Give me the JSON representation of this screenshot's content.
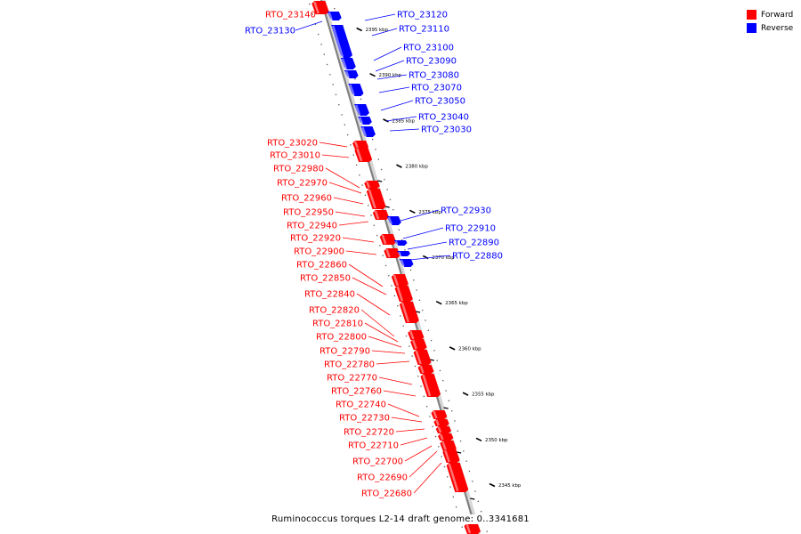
{
  "legend": {
    "forward_label": "Forward",
    "reverse_label": "Reverse",
    "forward_color": "#ff0000",
    "reverse_color": "#0000ff"
  },
  "caption": "Ruminococcus torques L2-14 draft genome: 0..3341681",
  "backbone_color": "#808080",
  "scale": {
    "unit": "kbp",
    "ticks": [
      {
        "value": 2395,
        "label": "2395 kbp"
      },
      {
        "value": 2390,
        "label": "2390 kbp"
      },
      {
        "value": 2385,
        "label": "2385 kbp"
      },
      {
        "value": 2380,
        "label": "2380 kbp"
      },
      {
        "value": 2375,
        "label": "2375 kbp"
      },
      {
        "value": 2370,
        "label": "2370 kbp"
      },
      {
        "value": 2365,
        "label": "2365 kbp"
      },
      {
        "value": 2360,
        "label": "2360 kbp"
      },
      {
        "value": 2355,
        "label": "2355 kbp"
      },
      {
        "value": 2350,
        "label": "2350 kbp"
      },
      {
        "value": 2345,
        "label": "2345 kbp"
      }
    ]
  },
  "genes": {
    "forward": [
      "RTO_23140",
      "RTO_23020",
      "RTO_23010",
      "RTO_22980",
      "RTO_22970",
      "RTO_22960",
      "RTO_22950",
      "RTO_22940",
      "RTO_22920",
      "RTO_22900",
      "RTO_22860",
      "RTO_22850",
      "RTO_22840",
      "RTO_22820",
      "RTO_22810",
      "RTO_22800",
      "RTO_22790",
      "RTO_22780",
      "RTO_22770",
      "RTO_22760",
      "RTO_22740",
      "RTO_22730",
      "RTO_22720",
      "RTO_22710",
      "RTO_22700",
      "RTO_22690",
      "RTO_22680"
    ],
    "reverse": [
      "RTO_23130",
      "RTO_23120",
      "RTO_23110",
      "RTO_23100",
      "RTO_23090",
      "RTO_23080",
      "RTO_23070",
      "RTO_23050",
      "RTO_23040",
      "RTO_23030",
      "RTO_22930",
      "RTO_22910",
      "RTO_22890",
      "RTO_22880"
    ]
  }
}
